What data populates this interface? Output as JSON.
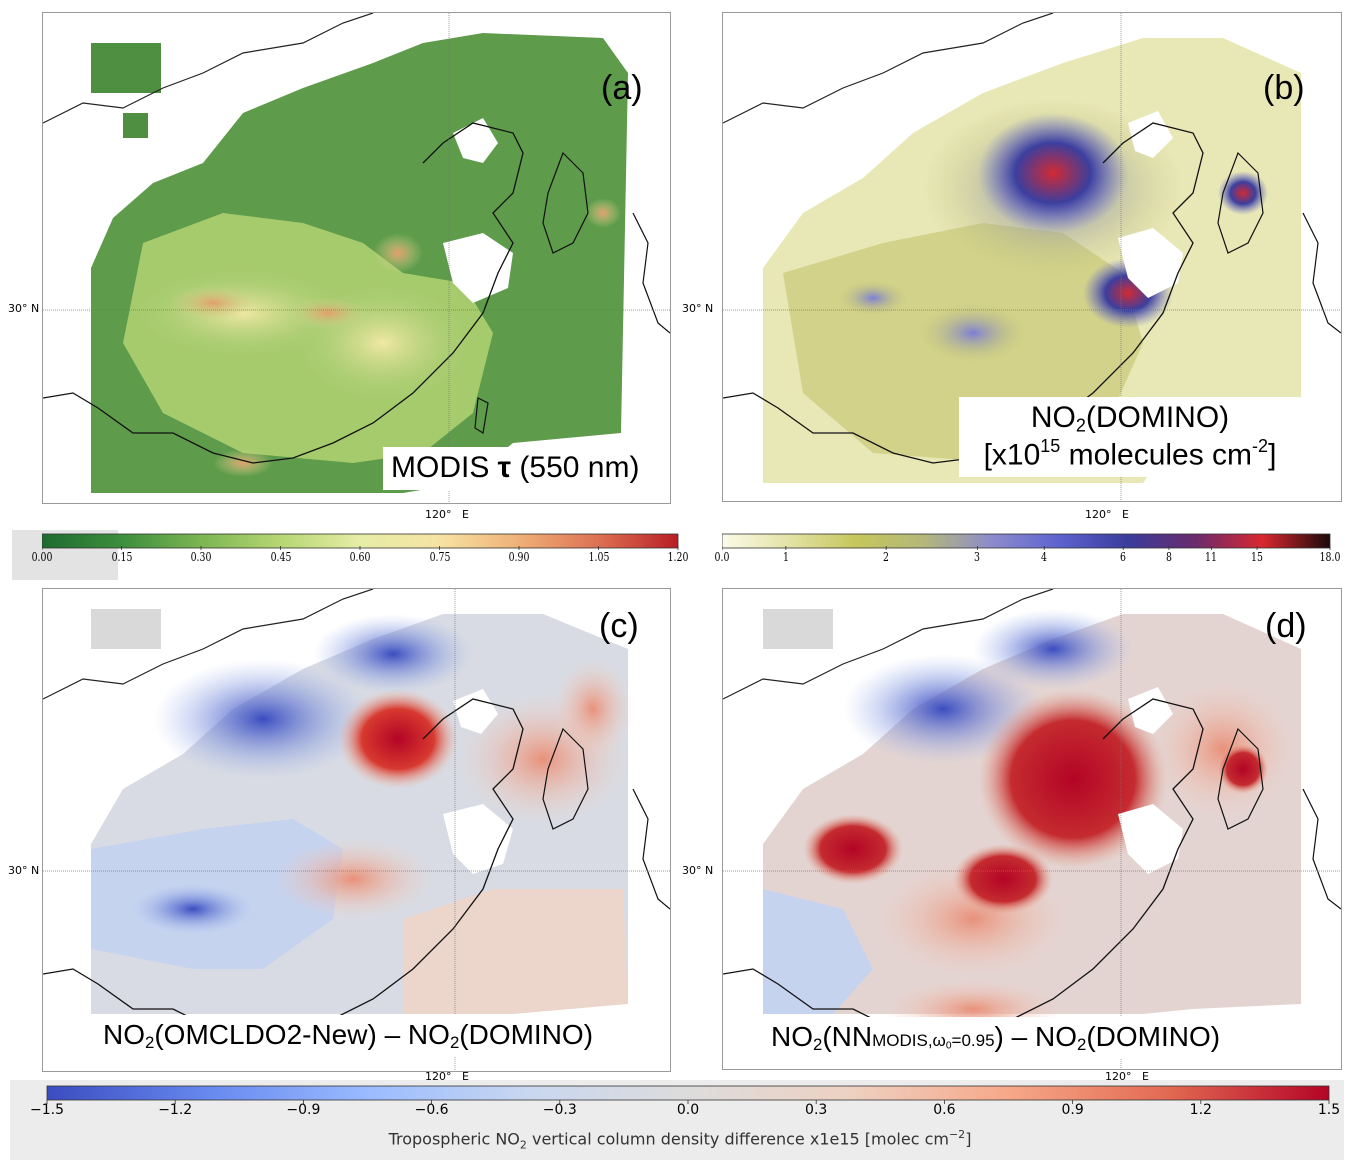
{
  "panels": {
    "a": {
      "letter": "(a)",
      "lat_label": "30° N",
      "lon_label": "120°   E",
      "title_main": "MODIS ",
      "title_tau": "τ",
      "title_suffix": " (550 nm)"
    },
    "b": {
      "letter": "(b)",
      "lat_label": "30° N",
      "lon_label": "120°   E",
      "title_line1_pre": "NO",
      "title_line1_sub": "2",
      "title_line1_post": "(DOMINO)",
      "title_line2_pre": "[x10",
      "title_line2_sup": "15",
      "title_line2_mid": " molecules cm",
      "title_line2_sup2": "-2",
      "title_line2_post": "]"
    },
    "c": {
      "letter": "(c)",
      "lat_label": "30° N",
      "lon_label": "120°   E",
      "title_pre": "NO",
      "title_sub": "2",
      "title_mid": "(OMCLDO2-New) – NO",
      "title_sub2": "2",
      "title_post": "(DOMINO)"
    },
    "d": {
      "letter": "(d)",
      "lat_label": "30° N",
      "lon_label": "120°   E",
      "title_pre": "NO",
      "title_sub": "2",
      "title_mid1": "(NN",
      "title_small": "MODIS,ω",
      "title_small_sub": "0",
      "title_small2": "=0.95",
      "title_mid2": ") – NO",
      "title_sub2": "2",
      "title_post": "(DOMINO)"
    }
  },
  "colorbar_aod": {
    "ticks": [
      "0.00",
      "0.15",
      "0.30",
      "0.45",
      "0.60",
      "0.75",
      "0.90",
      "1.05",
      "1.20"
    ],
    "colors": [
      "#1e6b30",
      "#3d8e3d",
      "#7cb552",
      "#b6d673",
      "#e6eda6",
      "#f6e3a3",
      "#efb077",
      "#dd7052",
      "#b81e26"
    ]
  },
  "colorbar_no2": {
    "ticks": [
      "0.0",
      "1",
      "2",
      "3",
      "4",
      "6",
      "8",
      "11",
      "15",
      "18.0"
    ],
    "colors": [
      "#fbfbea",
      "#e3e2a5",
      "#c5c65b",
      "#b3b77a",
      "#8c8bcc",
      "#5d62cf",
      "#3a3d9c",
      "#6a2b6e",
      "#d8282f",
      "#1a0a0a"
    ]
  },
  "colorbar_diff": {
    "ticks": [
      "−1.5",
      "−1.2",
      "−0.9",
      "−0.6",
      "−0.3",
      "0.0",
      "0.3",
      "0.6",
      "0.9",
      "1.2",
      "1.5"
    ],
    "colors": [
      "#3b4cc0",
      "#6788ee",
      "#9abbff",
      "#c9d7f0",
      "#dddcdc",
      "#edd1c2",
      "#f7a889",
      "#e26952",
      "#b40426"
    ],
    "label_pre": "Tropospheric NO",
    "label_sub": "2",
    "label_mid": " vertical column density difference x1e15  [molec cm",
    "label_sup": "−2",
    "label_post": "]"
  }
}
